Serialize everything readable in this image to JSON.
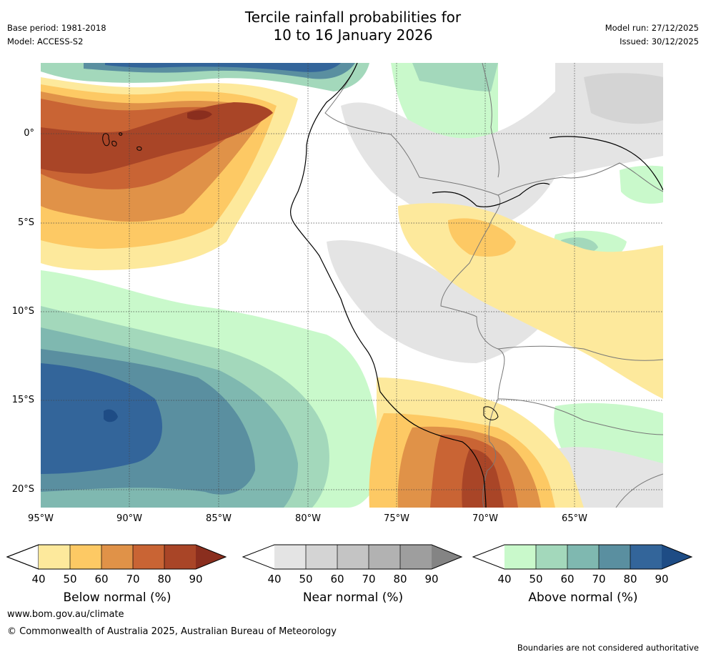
{
  "title": {
    "line1": "Tercile rainfall probabilities for",
    "line2": "10 to 16 January 2026"
  },
  "meta": {
    "base_period": "Base period: 1981-2018",
    "model": "Model: ACCESS-S2",
    "model_run": "Model run: 27/12/2025",
    "issued": "Issued: 30/12/2025"
  },
  "axes": {
    "lat_labels": [
      "0°",
      "5°S",
      "10°S",
      "15°S",
      "20°S"
    ],
    "lon_labels": [
      "95°W",
      "90°W",
      "85°W",
      "80°W",
      "75°W",
      "70°W",
      "65°W"
    ]
  },
  "colorbars": [
    {
      "label": "Below normal (%)",
      "ticks": [
        "40",
        "50",
        "60",
        "70",
        "80",
        "90"
      ],
      "colors": [
        "#fde99c",
        "#fdc964",
        "#e09248",
        "#c96434",
        "#a94527"
      ],
      "extend_color": "#8a2e1e"
    },
    {
      "label": "Near normal (%)",
      "ticks": [
        "40",
        "50",
        "60",
        "70",
        "80",
        "90"
      ],
      "colors": [
        "#e4e4e4",
        "#d4d4d4",
        "#c4c4c4",
        "#b2b2b2",
        "#9e9e9e"
      ],
      "extend_color": "#848484"
    },
    {
      "label": "Above normal (%)",
      "ticks": [
        "40",
        "50",
        "60",
        "70",
        "80",
        "90"
      ],
      "colors": [
        "#c9f9cb",
        "#a3d8bb",
        "#7fb8b0",
        "#5a8fa0",
        "#33659a"
      ],
      "extend_color": "#1e4c85"
    }
  ],
  "footer": {
    "website": "www.bom.gov.au/climate",
    "copyright": "© Commonwealth of Australia 2025, Australian Bureau of Meteorology",
    "disclaimer": "Boundaries are not considered authoritative"
  }
}
